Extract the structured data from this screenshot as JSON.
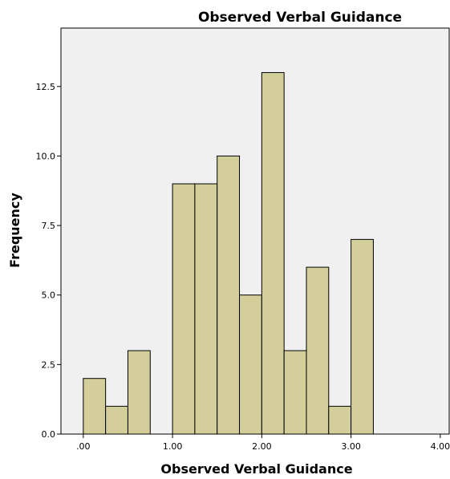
{
  "chart_data": {
    "type": "bar",
    "title": "Observed Verbal Guidance",
    "xlabel": "Observed Verbal Guidance",
    "ylabel": "Frequency",
    "xlim": [
      -0.25,
      4.1
    ],
    "ylim": [
      0,
      14.6
    ],
    "bin_width": 0.25,
    "bins": [
      {
        "x_start": 0.0,
        "value": 2
      },
      {
        "x_start": 0.25,
        "value": 1
      },
      {
        "x_start": 0.5,
        "value": 3
      },
      {
        "x_start": 1.0,
        "value": 9
      },
      {
        "x_start": 1.25,
        "value": 9
      },
      {
        "x_start": 1.5,
        "value": 10
      },
      {
        "x_start": 1.75,
        "value": 5
      },
      {
        "x_start": 2.0,
        "value": 13
      },
      {
        "x_start": 2.25,
        "value": 3
      },
      {
        "x_start": 2.5,
        "value": 6
      },
      {
        "x_start": 2.75,
        "value": 1
      },
      {
        "x_start": 3.0,
        "value": 7
      }
    ],
    "x_ticks": [
      {
        "value": 0,
        "label": ".00"
      },
      {
        "value": 1,
        "label": "1.00"
      },
      {
        "value": 2,
        "label": "2.00"
      },
      {
        "value": 3,
        "label": "3.00"
      },
      {
        "value": 4,
        "label": "4.00"
      }
    ],
    "y_ticks": [
      {
        "value": 0,
        "label": "0.0"
      },
      {
        "value": 2.5,
        "label": "2.5"
      },
      {
        "value": 5,
        "label": "5.0"
      },
      {
        "value": 7.5,
        "label": "7.5"
      },
      {
        "value": 10,
        "label": "10.0"
      },
      {
        "value": 12.5,
        "label": "12.5"
      }
    ],
    "grid": false,
    "colors": {
      "bar_fill": "#d3ce9a",
      "bar_stroke": "#000000",
      "plot_background": "#f0f0f0",
      "plot_border": "#000000"
    }
  }
}
